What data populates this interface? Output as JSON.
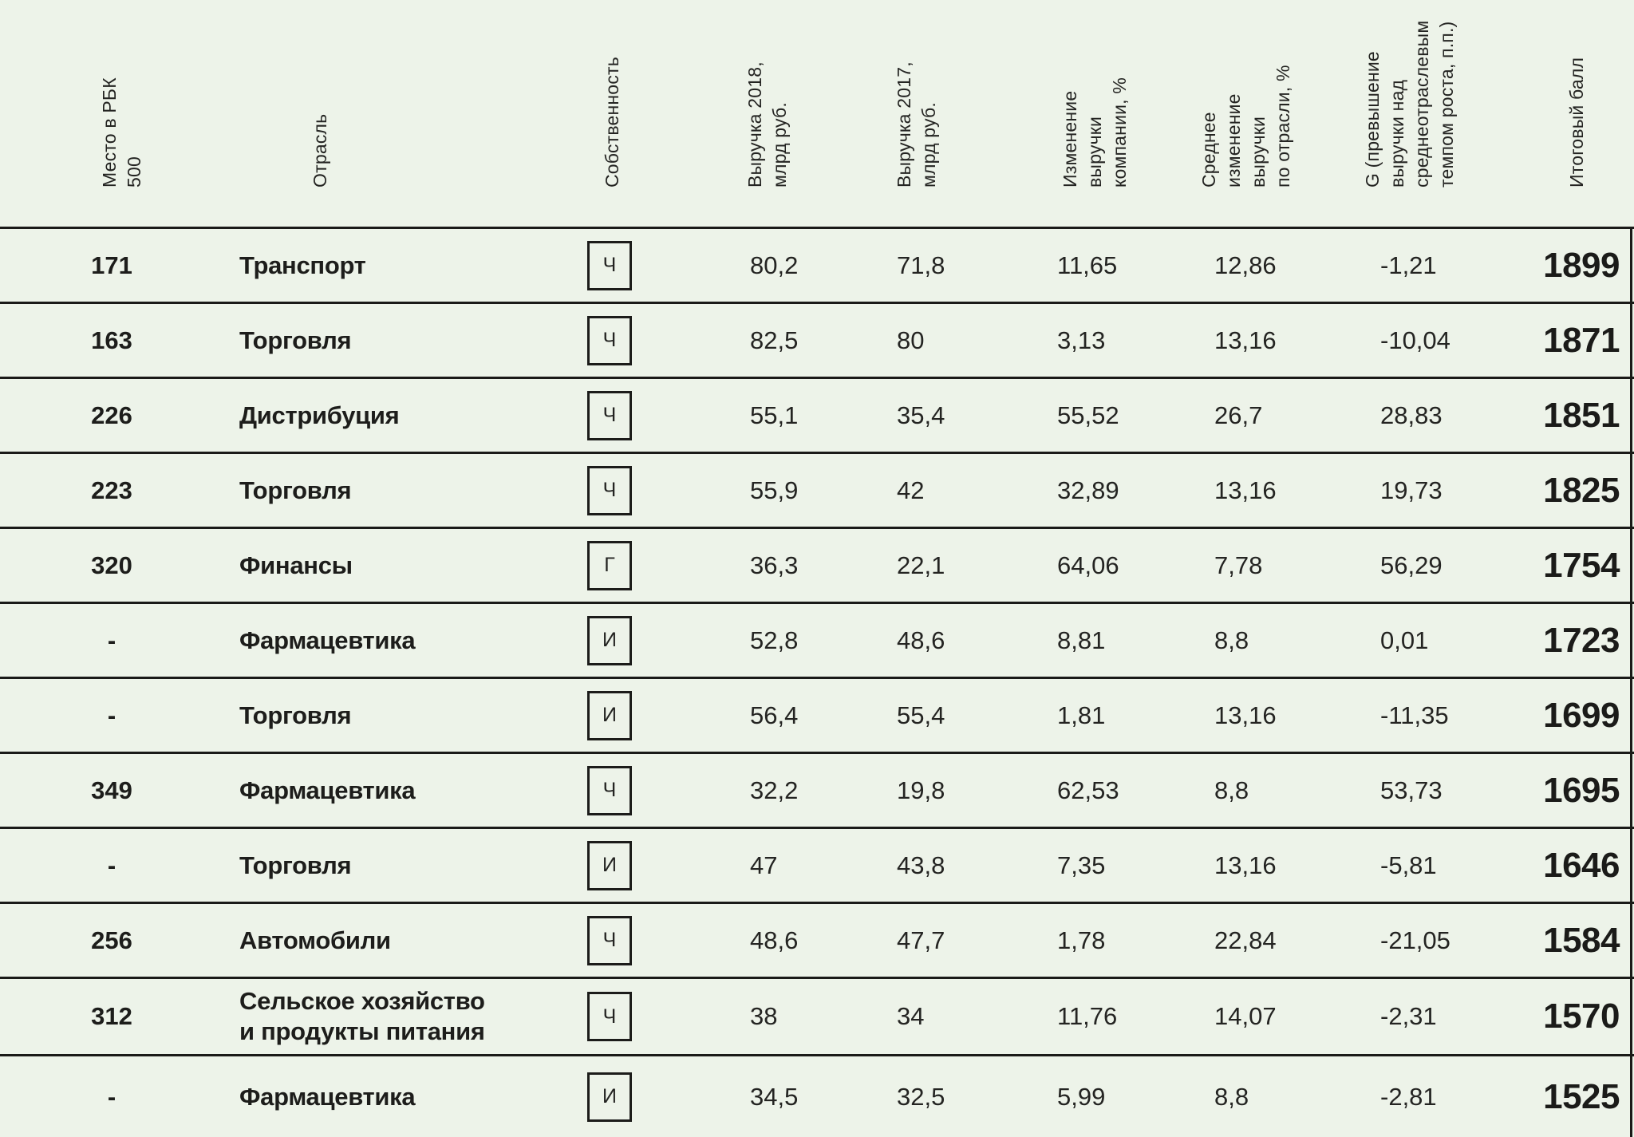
{
  "colors": {
    "background": "#edf3e9",
    "rule": "#1a1a18",
    "text": "#242422",
    "bold_text": "#1d1d1b"
  },
  "table": {
    "columns": [
      {
        "id": "place",
        "label": "Место в РБК\n500"
      },
      {
        "id": "industry",
        "label": "Отрасль"
      },
      {
        "id": "ownership",
        "label": "Собственность"
      },
      {
        "id": "revenue_2018",
        "label": "Выручка 2018,\nмлрд руб."
      },
      {
        "id": "revenue_2017",
        "label": "Выручка 2017,\nмлрд руб."
      },
      {
        "id": "company_change",
        "label": "Изменение\nвыручки\nкомпании, %"
      },
      {
        "id": "industry_avg_change",
        "label": "Среднее\nизменение\nвыручки\nпо отрасли, %"
      },
      {
        "id": "g",
        "label": "G (превышение\nвыручки над\nсреднеотраслевым\nтемпом роста, п.п.)"
      },
      {
        "id": "score",
        "label": "Итоговый балл"
      }
    ],
    "rows": [
      {
        "place": "171",
        "industry": "Транспорт",
        "ownership": "Ч",
        "revenue_2018": "80,2",
        "revenue_2017": "71,8",
        "company_change": "11,65",
        "industry_avg_change": "12,86",
        "g": "-1,21",
        "score": "1899"
      },
      {
        "place": "163",
        "industry": "Торговля",
        "ownership": "Ч",
        "revenue_2018": "82,5",
        "revenue_2017": "80",
        "company_change": "3,13",
        "industry_avg_change": "13,16",
        "g": "-10,04",
        "score": "1871"
      },
      {
        "place": "226",
        "industry": "Дистрибуция",
        "ownership": "Ч",
        "revenue_2018": "55,1",
        "revenue_2017": "35,4",
        "company_change": "55,52",
        "industry_avg_change": "26,7",
        "g": "28,83",
        "score": "1851"
      },
      {
        "place": "223",
        "industry": "Торговля",
        "ownership": "Ч",
        "revenue_2018": "55,9",
        "revenue_2017": "42",
        "company_change": "32,89",
        "industry_avg_change": "13,16",
        "g": "19,73",
        "score": "1825"
      },
      {
        "place": "320",
        "industry": "Финансы",
        "ownership": "Г",
        "revenue_2018": "36,3",
        "revenue_2017": "22,1",
        "company_change": "64,06",
        "industry_avg_change": "7,78",
        "g": "56,29",
        "score": "1754"
      },
      {
        "place": "-",
        "industry": "Фармацевтика",
        "ownership": "И",
        "revenue_2018": "52,8",
        "revenue_2017": "48,6",
        "company_change": "8,81",
        "industry_avg_change": "8,8",
        "g": "0,01",
        "score": "1723"
      },
      {
        "place": "-",
        "industry": "Торговля",
        "ownership": "И",
        "revenue_2018": "56,4",
        "revenue_2017": "55,4",
        "company_change": "1,81",
        "industry_avg_change": "13,16",
        "g": "-11,35",
        "score": "1699"
      },
      {
        "place": "349",
        "industry": "Фармацевтика",
        "ownership": "Ч",
        "revenue_2018": "32,2",
        "revenue_2017": "19,8",
        "company_change": "62,53",
        "industry_avg_change": "8,8",
        "g": "53,73",
        "score": "1695"
      },
      {
        "place": "-",
        "industry": "Торговля",
        "ownership": "И",
        "revenue_2018": "47",
        "revenue_2017": "43,8",
        "company_change": "7,35",
        "industry_avg_change": "13,16",
        "g": "-5,81",
        "score": "1646"
      },
      {
        "place": "256",
        "industry": "Автомобили",
        "ownership": "Ч",
        "revenue_2018": "48,6",
        "revenue_2017": "47,7",
        "company_change": "1,78",
        "industry_avg_change": "22,84",
        "g": "-21,05",
        "score": "1584"
      },
      {
        "place": "312",
        "industry": "Сельское хозяйство\nи продукты питания",
        "ownership": "Ч",
        "revenue_2018": "38",
        "revenue_2017": "34",
        "company_change": "11,76",
        "industry_avg_change": "14,07",
        "g": "-2,31",
        "score": "1570"
      },
      {
        "place": "-",
        "industry": "Фармацевтика",
        "ownership": "И",
        "revenue_2018": "34,5",
        "revenue_2017": "32,5",
        "company_change": "5,99",
        "industry_avg_change": "8,8",
        "g": "-2,81",
        "score": "1525"
      }
    ]
  }
}
